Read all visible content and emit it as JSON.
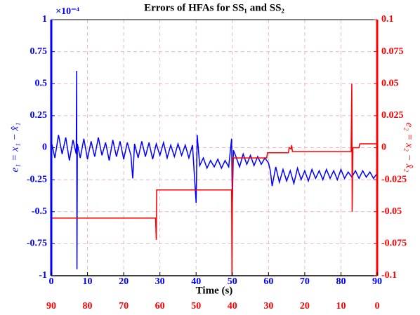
{
  "chart_data": {
    "type": "line",
    "title": "Errors of HFAs for SS₁ and SS₂",
    "xlabel": "Time (s)",
    "ylabel": "e₁ = x₁ − x̂₁",
    "y2label": "e₂ = x₂ − x̂₂",
    "y_scale_label": "×10⁻⁴",
    "xlim": [
      0,
      90
    ],
    "xticks": [
      0,
      10,
      20,
      30,
      40,
      50,
      60,
      70,
      80,
      90
    ],
    "x2lim": [
      90,
      0
    ],
    "x2ticks": [
      90,
      80,
      70,
      60,
      50,
      40,
      30,
      20,
      10,
      0
    ],
    "ylim": [
      -1,
      1
    ],
    "yticks": [
      -1,
      -0.75,
      -0.5,
      -0.25,
      0,
      0.25,
      0.5,
      0.75,
      1
    ],
    "y2lim": [
      -0.1,
      0.1
    ],
    "y2ticks": [
      -0.1,
      -0.075,
      -0.05,
      -0.025,
      0,
      0.025,
      0.05,
      0.075,
      0.1
    ],
    "grid": true,
    "series": [
      {
        "color": "#0000ff",
        "axis": "y",
        "x": [
          0,
          1,
          2,
          3,
          4,
          5,
          6,
          6.9,
          7,
          7.1,
          7.2,
          8,
          9,
          10,
          11,
          12,
          13,
          14,
          15,
          16,
          17,
          18,
          19,
          20,
          21,
          22,
          22.5,
          23,
          24,
          25,
          26,
          27,
          28,
          29,
          30,
          31,
          32,
          33,
          34,
          35,
          36,
          37,
          38,
          39,
          40,
          40.3,
          41,
          42,
          43,
          44,
          45,
          46,
          47,
          48,
          49,
          49.8,
          50,
          50.3,
          51,
          52,
          53,
          54,
          55,
          56,
          57,
          58,
          59,
          60,
          60.5,
          61,
          62,
          63,
          64,
          65,
          66,
          67,
          68,
          69,
          70,
          71,
          72,
          73,
          74,
          75,
          76,
          77,
          78,
          79,
          80,
          81,
          82,
          83,
          84,
          85,
          86,
          87,
          88,
          89,
          90
        ],
        "values": [
          0.05,
          -0.08,
          0.1,
          -0.05,
          0.08,
          -0.1,
          0.06,
          -0.05,
          0.6,
          -0.95,
          0.03,
          -0.08,
          0.07,
          -0.09,
          0.05,
          -0.07,
          0.08,
          -0.06,
          0.04,
          -0.1,
          0.06,
          -0.07,
          0.05,
          -0.09,
          0.04,
          -0.06,
          -0.24,
          0.03,
          -0.08,
          0.05,
          -0.07,
          0.04,
          -0.09,
          0.03,
          -0.06,
          0.04,
          -0.08,
          0.02,
          -0.07,
          0.03,
          -0.06,
          0.02,
          -0.08,
          0.02,
          -0.43,
          0.1,
          -0.14,
          -0.08,
          -0.16,
          -0.1,
          -0.15,
          -0.09,
          -0.16,
          -0.1,
          -0.15,
          0.07,
          -0.43,
          -0.02,
          -0.07,
          -0.15,
          -0.05,
          -0.13,
          -0.06,
          -0.14,
          -0.07,
          -0.13,
          -0.08,
          -0.12,
          -0.18,
          -0.3,
          -0.15,
          -0.27,
          -0.17,
          -0.26,
          -0.18,
          -0.28,
          -0.16,
          -0.25,
          -0.18,
          -0.26,
          -0.17,
          -0.24,
          -0.18,
          -0.25,
          -0.17,
          -0.24,
          -0.18,
          -0.25,
          -0.17,
          -0.24,
          -0.19,
          -0.23,
          -0.18,
          -0.24,
          -0.18,
          -0.23,
          -0.19,
          -0.24,
          -0.2
        ]
      },
      {
        "color": "#ff0000",
        "axis": "y2",
        "x": [
          0,
          28.8,
          29,
          29.1,
          49.8,
          49.9,
          50.1,
          59.5,
          59.7,
          65.5,
          65.7,
          66.2,
          66.4,
          66.6,
          82.8,
          83,
          83.1,
          83.3,
          85,
          85.2,
          90
        ],
        "values": [
          -0.055,
          -0.055,
          -0.072,
          -0.033,
          -0.033,
          -0.1,
          -0.008,
          -0.008,
          -0.004,
          -0.004,
          0,
          -0.001,
          0.002,
          -0.003,
          -0.003,
          0.05,
          -0.05,
          0,
          0,
          0.003,
          0.003
        ]
      }
    ]
  }
}
